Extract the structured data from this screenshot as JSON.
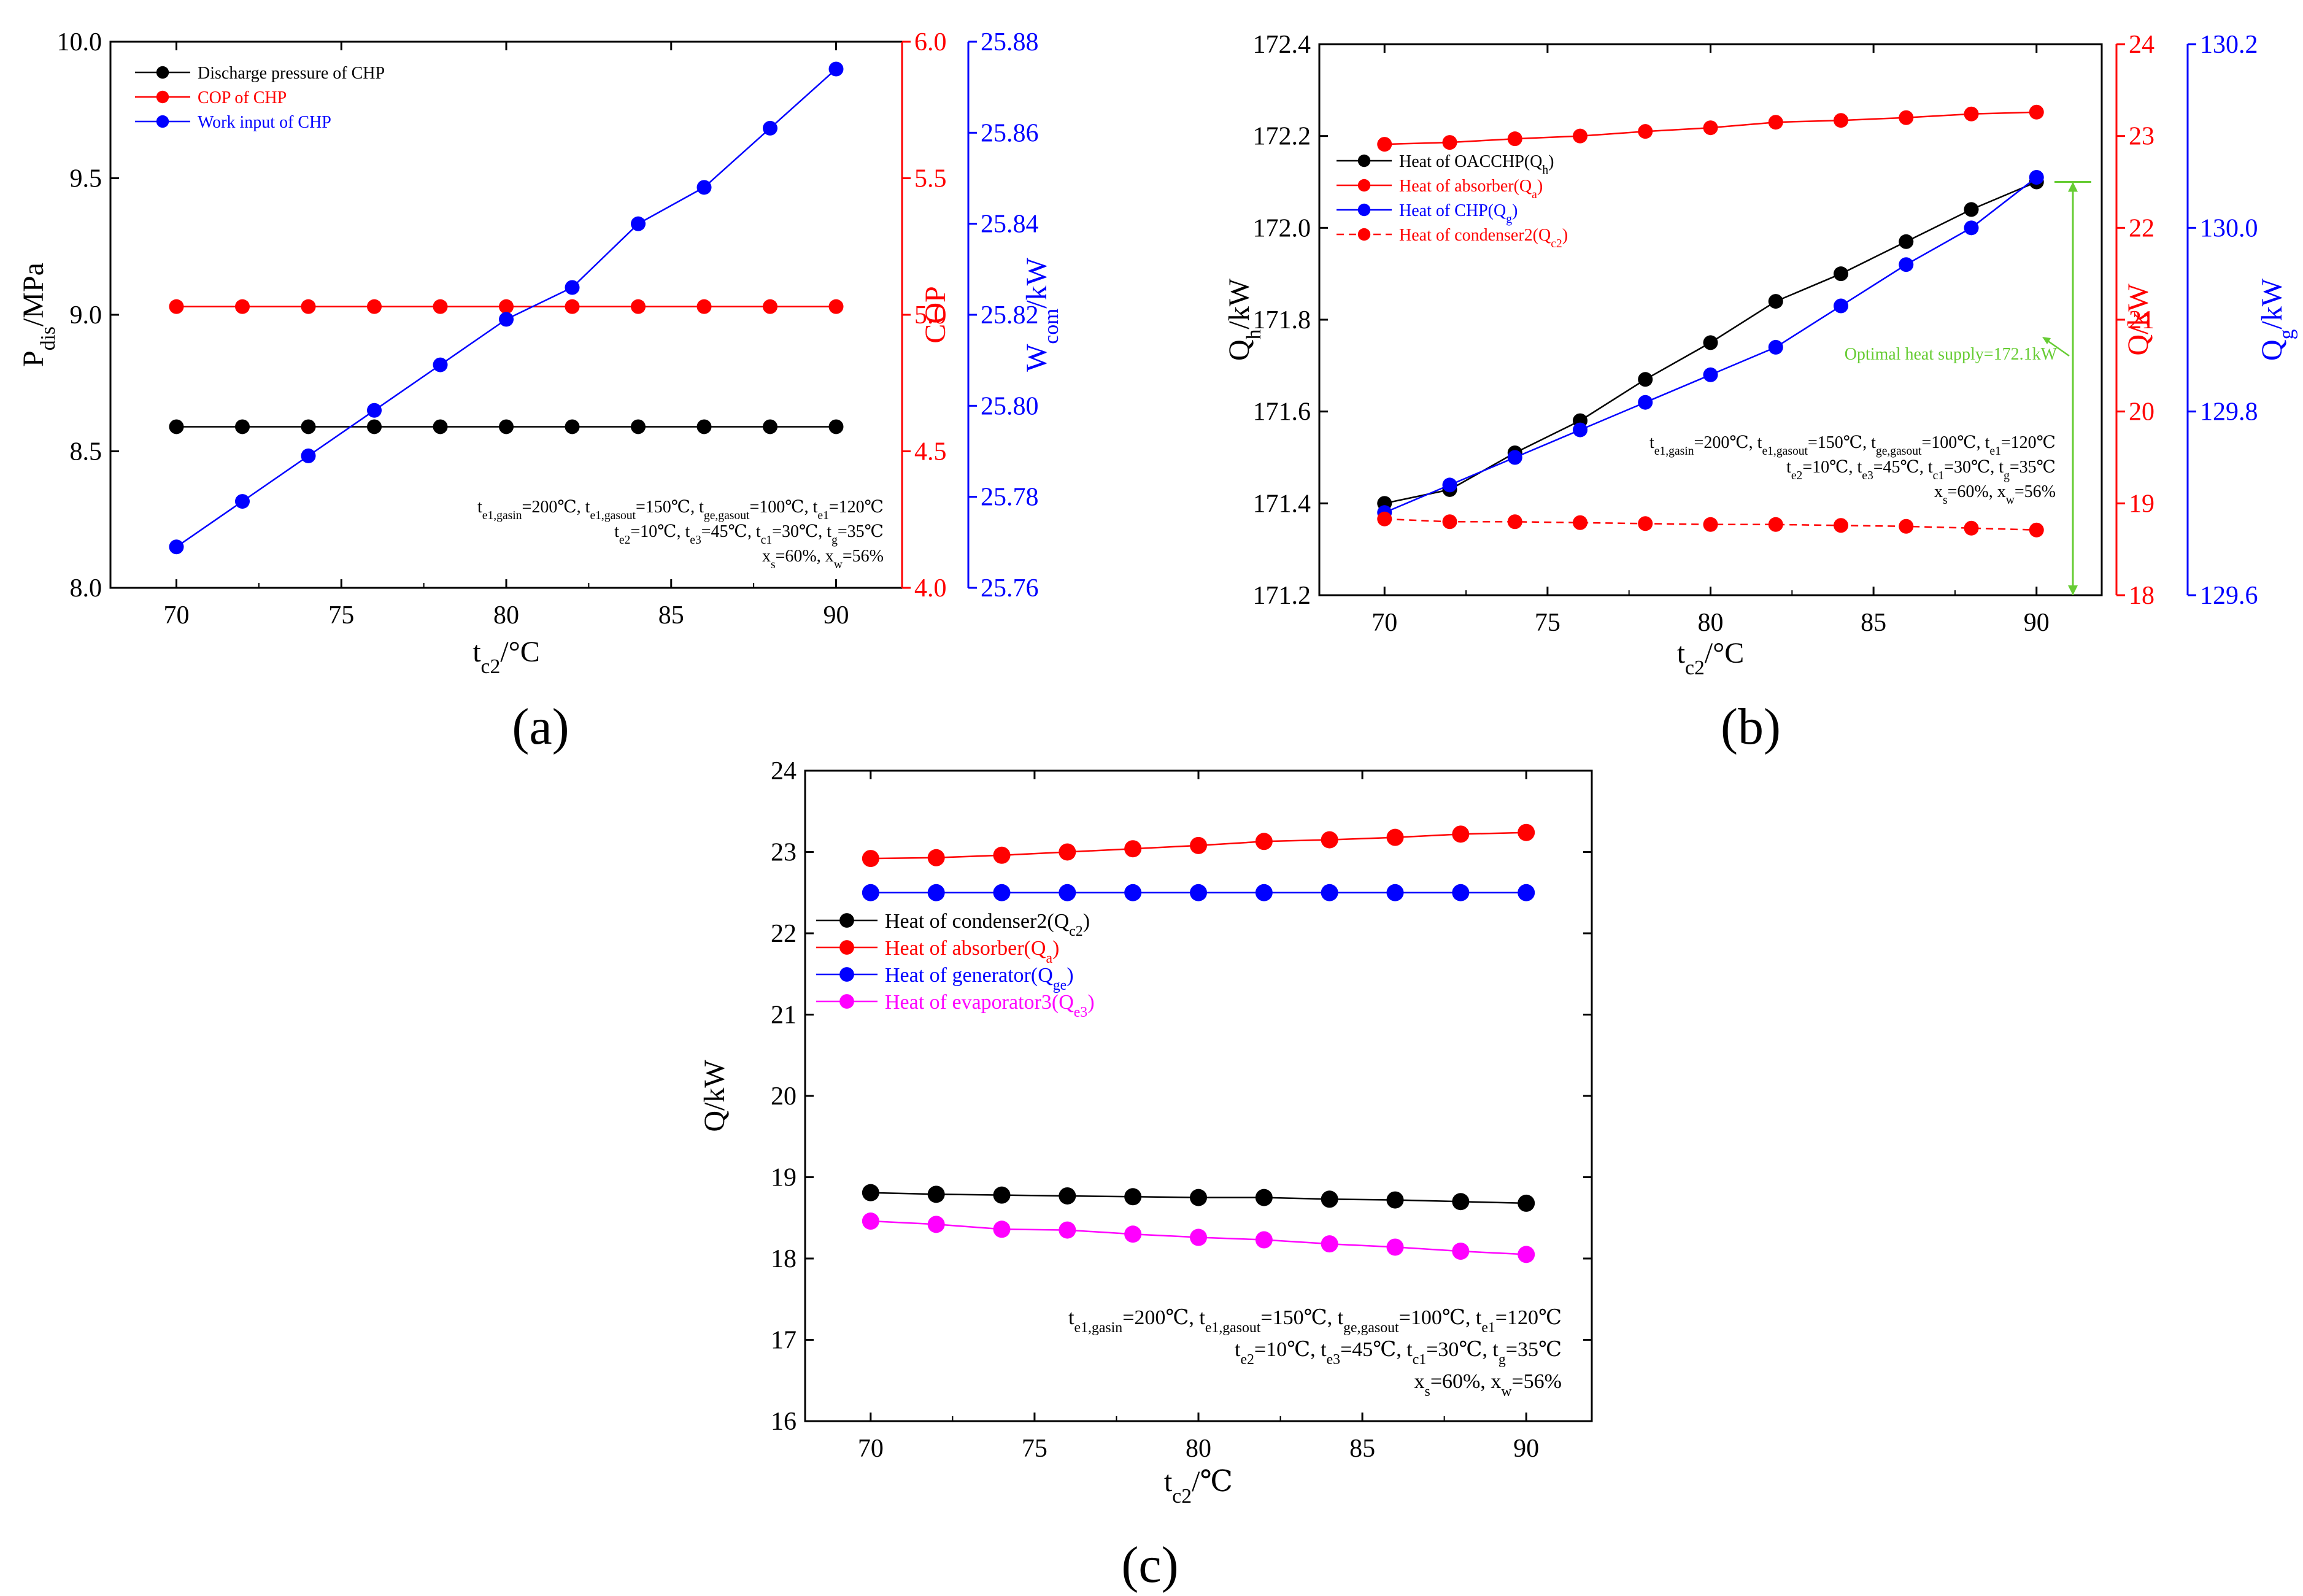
{
  "panel_labels": [
    "(a)",
    "(b)",
    "(c)"
  ],
  "colors": {
    "black": "#000000",
    "red": "#ff0000",
    "blue": "#0000ff",
    "magenta": "#ff00ff",
    "green": "#66cc33"
  },
  "chart_data": [
    {
      "id": "a",
      "type": "line",
      "x": [
        70,
        72,
        74,
        76,
        78,
        80,
        82,
        84,
        86,
        88,
        90
      ],
      "xlabel": "t",
      "xlabel_sub": "c2",
      "xlabel_tail": "/°C",
      "xlim": [
        68,
        92
      ],
      "xticks": [
        70,
        75,
        80,
        85,
        90
      ],
      "xtick_labels": [
        "70",
        "75",
        "80",
        "85",
        "90"
      ],
      "axes": [
        {
          "id": "left",
          "label": "P",
          "label_sub": "dis",
          "label_tail": "/MPa",
          "color": "#000000",
          "lim": [
            8.0,
            10.0
          ],
          "ticks": [
            8.0,
            8.5,
            9.0,
            9.5,
            10.0
          ],
          "tick_labels": [
            "8.0",
            "8.5",
            "9.0",
            "9.5",
            "10.0"
          ]
        },
        {
          "id": "right1",
          "label": "COP",
          "label_sub": "",
          "label_tail": "",
          "color": "#ff0000",
          "lim": [
            4.0,
            6.0
          ],
          "ticks": [
            4.0,
            4.5,
            5.0,
            5.5,
            6.0
          ],
          "tick_labels": [
            "4.0",
            "4.5",
            "5.0",
            "5.5",
            "6.0"
          ]
        },
        {
          "id": "right2",
          "label": "W",
          "label_sub": "com",
          "label_tail": "/kW",
          "color": "#0000ff",
          "lim": [
            25.76,
            25.88
          ],
          "ticks": [
            25.76,
            25.78,
            25.8,
            25.82,
            25.84,
            25.86,
            25.88
          ],
          "tick_labels": [
            "25.76",
            "25.78",
            "25.80",
            "25.82",
            "25.84",
            "25.86",
            "25.88"
          ]
        }
      ],
      "series": [
        {
          "name": "Discharge pressure of CHP",
          "axis": "left",
          "color": "#000000",
          "dashed": false,
          "values": [
            8.59,
            8.59,
            8.59,
            8.59,
            8.59,
            8.59,
            8.59,
            8.59,
            8.59,
            8.59,
            8.59
          ]
        },
        {
          "name": "COP of CHP",
          "axis": "right1",
          "color": "#ff0000",
          "dashed": false,
          "values": [
            5.03,
            5.03,
            5.03,
            5.03,
            5.03,
            5.03,
            5.03,
            5.03,
            5.03,
            5.03,
            5.03
          ]
        },
        {
          "name": "Work input of CHP",
          "axis": "right2",
          "color": "#0000ff",
          "dashed": false,
          "values": [
            25.769,
            25.779,
            25.789,
            25.799,
            25.809,
            25.819,
            25.826,
            25.84,
            25.848,
            25.861,
            25.874
          ]
        }
      ],
      "legend": {
        "position": "top-left",
        "entries": [
          {
            "text": "Discharge pressure of CHP",
            "sub": "",
            "tail": ""
          },
          {
            "text": "COP of CHP",
            "sub": "",
            "tail": ""
          },
          {
            "text": "Work input of CHP",
            "sub": "",
            "tail": ""
          }
        ]
      },
      "annotations": [
        [
          [
            "t",
            "e1,gasin",
            "=200℃,  "
          ],
          [
            "t",
            "e1,gasout",
            "=150℃,  "
          ],
          [
            "t",
            "ge,gasout",
            "=100℃,  "
          ],
          [
            "t",
            "e1",
            "=120℃"
          ]
        ],
        [
          [
            "t",
            "e2",
            "=10℃,  "
          ],
          [
            "t",
            "e3",
            "=45℃,  "
          ],
          [
            "t",
            "c1",
            "=30℃,  "
          ],
          [
            "t",
            "g",
            "=35℃"
          ]
        ],
        [
          [
            "x",
            "s",
            "=60%,  "
          ],
          [
            "x",
            "w",
            "=56%"
          ]
        ]
      ]
    },
    {
      "id": "b",
      "type": "line",
      "x": [
        70,
        72,
        74,
        76,
        78,
        80,
        82,
        84,
        86,
        88,
        90
      ],
      "xlabel": "t",
      "xlabel_sub": "c2",
      "xlabel_tail": "/°C",
      "xlim": [
        68,
        92
      ],
      "xticks": [
        70,
        75,
        80,
        85,
        90
      ],
      "xtick_labels": [
        "70",
        "75",
        "80",
        "85",
        "90"
      ],
      "axes": [
        {
          "id": "left",
          "label": "Q",
          "label_sub": "h",
          "label_tail": "/kW",
          "color": "#000000",
          "lim": [
            171.2,
            172.4
          ],
          "ticks": [
            171.2,
            171.4,
            171.6,
            171.8,
            172.0,
            172.2,
            172.4
          ],
          "tick_labels": [
            "171.2",
            "171.4",
            "171.6",
            "171.8",
            "172.0",
            "172.2",
            "172.4"
          ]
        },
        {
          "id": "right1",
          "label": "Q/kW",
          "label_sub": "",
          "label_tail": "",
          "color": "#ff0000",
          "lim": [
            18,
            24
          ],
          "ticks": [
            18,
            19,
            20,
            21,
            22,
            23,
            24
          ],
          "tick_labels": [
            "18",
            "19",
            "20",
            "21",
            "22",
            "23",
            "24"
          ]
        },
        {
          "id": "right2",
          "label": "Q",
          "label_sub": "g",
          "label_tail": "/kW",
          "color": "#0000ff",
          "lim": [
            129.6,
            130.2
          ],
          "ticks": [
            129.6,
            129.8,
            130.0,
            130.2
          ],
          "tick_labels": [
            "129.6",
            "129.8",
            "130.0",
            "130.2"
          ]
        }
      ],
      "series": [
        {
          "name": "Heat of OACCHP(Qh)",
          "axis": "left",
          "color": "#000000",
          "dashed": false,
          "values": [
            171.4,
            171.43,
            171.51,
            171.58,
            171.67,
            171.75,
            171.84,
            171.9,
            171.97,
            172.04,
            172.1
          ]
        },
        {
          "name": "Heat of absorber(Qa)",
          "axis": "right1",
          "color": "#ff0000",
          "dashed": false,
          "values": [
            22.91,
            22.93,
            22.97,
            23.0,
            23.05,
            23.09,
            23.15,
            23.17,
            23.2,
            23.24,
            23.26
          ]
        },
        {
          "name": "Heat of CHP(Qg)",
          "axis": "right2",
          "color": "#0000ff",
          "dashed": false,
          "values": [
            129.69,
            129.72,
            129.75,
            129.78,
            129.81,
            129.84,
            129.87,
            129.915,
            129.96,
            130.0,
            130.055
          ]
        },
        {
          "name": "Heat of condenser2(Qc2)",
          "axis": "right1",
          "color": "#ff0000",
          "dashed": true,
          "values": [
            18.83,
            18.8,
            18.8,
            18.79,
            18.78,
            18.77,
            18.77,
            18.76,
            18.75,
            18.73,
            18.71
          ]
        }
      ],
      "legend": {
        "position": "top-left",
        "entries": [
          {
            "text": "Heat of OACCHP(Q",
            "sub": "h",
            "tail": ")"
          },
          {
            "text": "Heat of absorber(Q",
            "sub": "a",
            "tail": ")"
          },
          {
            "text": "Heat of CHP(Q",
            "sub": "g",
            "tail": ")"
          },
          {
            "text": "Heat of condenser2(Q",
            "sub": "c2",
            "tail": ")"
          }
        ]
      },
      "optimal_label": "Optimal heat supply=172.1kW",
      "annotations": [
        [
          [
            "t",
            "e1,gasin",
            "=200℃,  "
          ],
          [
            "t",
            "e1,gasout",
            "=150℃,  "
          ],
          [
            "t",
            "ge,gasout",
            "=100℃,  "
          ],
          [
            "t",
            "e1",
            "=120℃"
          ]
        ],
        [
          [
            "t",
            "e2",
            "=10℃,  "
          ],
          [
            "t",
            "e3",
            "=45℃,  "
          ],
          [
            "t",
            "c1",
            "=30℃,  "
          ],
          [
            "t",
            "g",
            "=35℃"
          ]
        ],
        [
          [
            "x",
            "s",
            "=60%,  "
          ],
          [
            "x",
            "w",
            "=56%"
          ]
        ]
      ]
    },
    {
      "id": "c",
      "type": "line",
      "x": [
        70,
        72,
        74,
        76,
        78,
        80,
        82,
        84,
        86,
        88,
        90
      ],
      "xlabel": "t",
      "xlabel_sub": "c2",
      "xlabel_tail": "/℃",
      "xlim": [
        68,
        92
      ],
      "xticks": [
        70,
        75,
        80,
        85,
        90
      ],
      "xtick_labels": [
        "70",
        "75",
        "80",
        "85",
        "90"
      ],
      "axes": [
        {
          "id": "left",
          "label": "Q/kW",
          "label_sub": "",
          "label_tail": "",
          "color": "#000000",
          "lim": [
            16,
            24
          ],
          "ticks": [
            16,
            17,
            18,
            19,
            20,
            21,
            22,
            23,
            24
          ],
          "tick_labels": [
            "16",
            "17",
            "18",
            "19",
            "20",
            "21",
            "22",
            "23",
            "24"
          ]
        }
      ],
      "series": [
        {
          "name": "Heat of condenser2(Qc2)",
          "axis": "left",
          "color": "#000000",
          "dashed": false,
          "values": [
            18.81,
            18.79,
            18.78,
            18.77,
            18.76,
            18.75,
            18.75,
            18.73,
            18.72,
            18.7,
            18.68
          ]
        },
        {
          "name": "Heat of absorber(Qa)",
          "axis": "left",
          "color": "#ff0000",
          "dashed": false,
          "values": [
            22.92,
            22.93,
            22.96,
            23.0,
            23.04,
            23.08,
            23.13,
            23.15,
            23.18,
            23.22,
            23.24
          ]
        },
        {
          "name": "Heat of generator(Qge)",
          "axis": "left",
          "color": "#0000ff",
          "dashed": false,
          "values": [
            22.5,
            22.5,
            22.5,
            22.5,
            22.5,
            22.5,
            22.5,
            22.5,
            22.5,
            22.5,
            22.5
          ]
        },
        {
          "name": "Heat of evaporator3(Qe3)",
          "axis": "left",
          "color": "#ff00ff",
          "dashed": false,
          "values": [
            18.46,
            18.42,
            18.36,
            18.35,
            18.3,
            18.26,
            18.23,
            18.18,
            18.14,
            18.09,
            18.05
          ]
        }
      ],
      "legend": {
        "position": "middle-left",
        "entries": [
          {
            "text": "Heat of condenser2(Q",
            "sub": "c2",
            "tail": ")"
          },
          {
            "text": "Heat of absorber(Q",
            "sub": "a",
            "tail": ")"
          },
          {
            "text": "Heat of generator(Q",
            "sub": "ge",
            "tail": ")"
          },
          {
            "text": "Heat of evaporator3(Q",
            "sub": "e3",
            "tail": ")"
          }
        ]
      },
      "annotations": [
        [
          [
            "t",
            "e1,gasin",
            "=200℃,  "
          ],
          [
            "t",
            "e1,gasout",
            "=150℃,  "
          ],
          [
            "t",
            "ge,gasout",
            "=100℃,  "
          ],
          [
            "t",
            "e1",
            "=120℃"
          ]
        ],
        [
          [
            "t",
            "e2",
            "=10℃,  "
          ],
          [
            "t",
            "e3",
            "=45℃,  "
          ],
          [
            "t",
            "c1",
            "=30℃,  "
          ],
          [
            "t",
            "g",
            "=35℃"
          ]
        ],
        [
          [
            "x",
            "s",
            "=60%,  "
          ],
          [
            "x",
            "w",
            "=56%"
          ]
        ]
      ]
    }
  ]
}
